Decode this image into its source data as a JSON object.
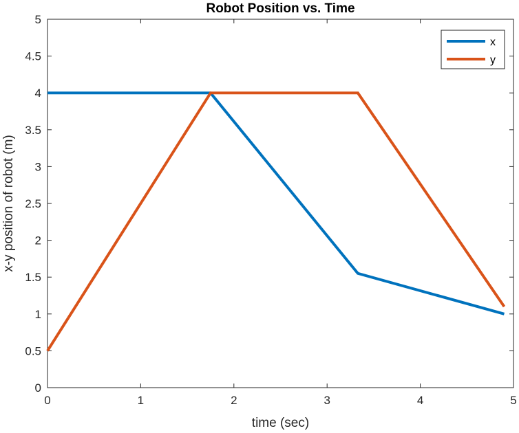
{
  "chart_data": {
    "type": "line",
    "title": "Robot Position vs. Time",
    "xlabel": "time (sec)",
    "ylabel": "x-y position of robot (m)",
    "xlim": [
      0,
      5
    ],
    "ylim": [
      0,
      5
    ],
    "xticks": [
      "0",
      "1",
      "2",
      "3",
      "4",
      "5"
    ],
    "yticks": [
      "0",
      "0.5",
      "1",
      "1.5",
      "2",
      "2.5",
      "3",
      "3.5",
      "4",
      "4.5",
      "5"
    ],
    "grid": false,
    "legend_position": "top-right",
    "series": [
      {
        "name": "x",
        "color": "#0072BD",
        "x": [
          0,
          1.75,
          3.33,
          4.9
        ],
        "y": [
          4,
          4,
          1.55,
          1.0
        ]
      },
      {
        "name": "y",
        "color": "#D95319",
        "x": [
          0,
          1.75,
          3.33,
          4.9
        ],
        "y": [
          0.5,
          4,
          4,
          1.1
        ]
      }
    ]
  }
}
